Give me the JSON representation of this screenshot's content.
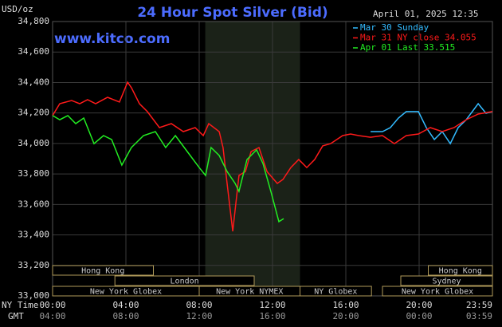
{
  "chart_data": {
    "type": "line",
    "title": "24 Hour Spot Silver (Bid)",
    "subtitle": "www.kitco.com",
    "timestamp": "April 01, 2025 12:35",
    "y_label": "USD/oz",
    "x_label": "NY Time",
    "x2_label": "GMT",
    "ylim": [
      33000,
      34800
    ],
    "yticks": [
      {
        "value": 33000,
        "label": "33,000"
      },
      {
        "value": 33200,
        "label": "33,200"
      },
      {
        "value": 33400,
        "label": "33,400"
      },
      {
        "value": 33600,
        "label": "33,600"
      },
      {
        "value": 33800,
        "label": "33,800"
      },
      {
        "value": 34000,
        "label": "34,000"
      },
      {
        "value": 34200,
        "label": "34,200"
      },
      {
        "value": 34400,
        "label": "34,400"
      },
      {
        "value": 34600,
        "label": "34,600"
      },
      {
        "value": 34800,
        "label": "34,800"
      }
    ],
    "xlim": [
      0,
      24
    ],
    "xticks": [
      {
        "value": 0,
        "label": "00:00"
      },
      {
        "value": 4,
        "label": "04:00"
      },
      {
        "value": 8,
        "label": "08:00"
      },
      {
        "value": 12,
        "label": "12:00"
      },
      {
        "value": 16,
        "label": "16:00"
      },
      {
        "value": 20,
        "label": "20:00"
      },
      {
        "value": 24,
        "label": "23:59"
      }
    ],
    "x2ticks": [
      {
        "value": 0,
        "label": "04:00"
      },
      {
        "value": 4,
        "label": "08:00"
      },
      {
        "value": 8,
        "label": "12:00"
      },
      {
        "value": 12,
        "label": "16:00"
      },
      {
        "value": 16,
        "label": "20:00"
      },
      {
        "value": 20,
        "label": "00:00"
      },
      {
        "value": 24,
        "label": "03:59"
      }
    ],
    "grid": true,
    "shaded_range": [
      8.33,
      13.5
    ],
    "series": [
      {
        "name": "Mar 30 Sunday",
        "color": "#33bbff",
        "x": [
          17.35,
          18,
          18.43,
          18.87,
          19.3,
          19.96,
          20.39,
          20.83,
          21.26,
          21.7,
          22.13,
          22.57,
          23.22,
          23.65,
          24
        ],
        "values": [
          34078,
          34078,
          34104,
          34167,
          34209,
          34209,
          34104,
          34026,
          34078,
          33999,
          34104,
          34156,
          34261,
          34198,
          34209
        ]
      },
      {
        "name": "Mar 31 NY close 34.055",
        "color": "#ff1a1a",
        "x": [
          0,
          0.39,
          1.04,
          1.48,
          1.91,
          2.35,
          3,
          3.65,
          4.09,
          4.3,
          4.74,
          5.17,
          5.83,
          6.48,
          7.13,
          7.78,
          8.22,
          8.52,
          9.09,
          9.3,
          9.52,
          9.83,
          10.17,
          10.52,
          10.83,
          11.26,
          11.7,
          12.26,
          12.57,
          13,
          13.43,
          13.87,
          14.3,
          14.74,
          15.17,
          15.83,
          16.26,
          16.7,
          17.35,
          18,
          18.65,
          19.3,
          19.96,
          20.61,
          21.26,
          21.91,
          22.57,
          23.22,
          24
        ],
        "values": [
          34183,
          34261,
          34282,
          34261,
          34287,
          34261,
          34303,
          34272,
          34402,
          34366,
          34261,
          34209,
          34104,
          34130,
          34078,
          34104,
          34052,
          34130,
          34078,
          33973,
          33738,
          33424,
          33790,
          33816,
          33947,
          33973,
          33816,
          33738,
          33764,
          33842,
          33895,
          33842,
          33895,
          33984,
          33999,
          34052,
          34062,
          34052,
          34041,
          34052,
          33999,
          34052,
          34062,
          34104,
          34078,
          34104,
          34156,
          34193,
          34209
        ]
      },
      {
        "name": "Apr 01 Last 33.515",
        "color": "#22ee22",
        "x": [
          0,
          0.39,
          0.83,
          1.26,
          1.7,
          2.26,
          2.78,
          3.22,
          3.78,
          4.3,
          4.96,
          5.61,
          6.17,
          6.7,
          7.35,
          8,
          8.35,
          8.65,
          9.09,
          9.52,
          9.96,
          10.17,
          10.61,
          11.13,
          11.48,
          11.91,
          12.35,
          12.61
        ],
        "values": [
          34183,
          34156,
          34183,
          34130,
          34167,
          33999,
          34052,
          34026,
          33858,
          33973,
          34052,
          34078,
          33973,
          34052,
          33947,
          33842,
          33790,
          33973,
          33921,
          33816,
          33738,
          33686,
          33895,
          33958,
          33869,
          33686,
          33487,
          33507
        ]
      }
    ],
    "sessions": [
      [
        {
          "label": "Hong Kong",
          "start": 0,
          "end": 5.5
        },
        {
          "label": "Hong Kong",
          "start": 20.5,
          "end": 24
        }
      ],
      [
        {
          "label": "London",
          "start": 3.4,
          "end": 11
        },
        {
          "label": "Sydney",
          "start": 19,
          "end": 24
        }
      ],
      [
        {
          "label": "New York Globex",
          "start": 0,
          "end": 8
        },
        {
          "label": "New York NYMEX",
          "start": 8,
          "end": 13.5
        },
        {
          "label": "NY Globex",
          "start": 13.5,
          "end": 17.4
        },
        {
          "label": "New York Globex",
          "start": 18,
          "end": 24
        }
      ]
    ]
  }
}
